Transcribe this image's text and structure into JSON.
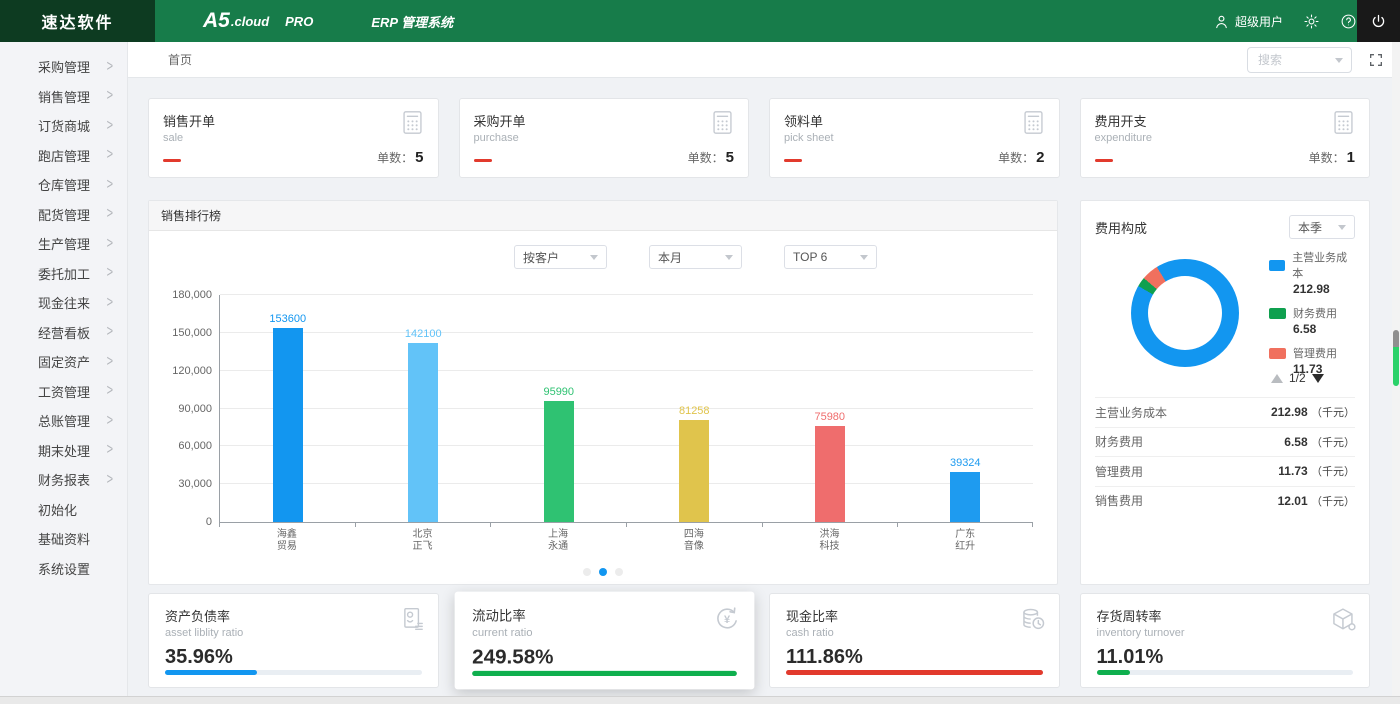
{
  "header": {
    "brand": "速达软件",
    "logo": {
      "main": "A5",
      "cloud": ".cloud",
      "pro": "PRO"
    },
    "system_name": "ERP 管理系统",
    "user_name": "超级用户"
  },
  "sidebar": {
    "items": [
      {
        "label": "采购管理",
        "expandable": true
      },
      {
        "label": "销售管理",
        "expandable": true
      },
      {
        "label": "订货商城",
        "expandable": true
      },
      {
        "label": "跑店管理",
        "expandable": true
      },
      {
        "label": "仓库管理",
        "expandable": true
      },
      {
        "label": "配货管理",
        "expandable": true
      },
      {
        "label": "生产管理",
        "expandable": true
      },
      {
        "label": "委托加工",
        "expandable": true
      },
      {
        "label": "现金往来",
        "expandable": true
      },
      {
        "label": "经营看板",
        "expandable": true
      },
      {
        "label": "固定资产",
        "expandable": true
      },
      {
        "label": "工资管理",
        "expandable": true
      },
      {
        "label": "总账管理",
        "expandable": true
      },
      {
        "label": "期末处理",
        "expandable": true
      },
      {
        "label": "财务报表",
        "expandable": true
      },
      {
        "label": "初始化",
        "expandable": false
      },
      {
        "label": "基础资料",
        "expandable": false
      },
      {
        "label": "系统设置",
        "expandable": false
      }
    ]
  },
  "toolbar": {
    "breadcrumb": "首页",
    "search_placeholder": "搜索"
  },
  "stat_cards": [
    {
      "title": "销售开单",
      "subtitle": "sale",
      "count_label": "单数：",
      "count": "5"
    },
    {
      "title": "采购开单",
      "subtitle": "purchase",
      "count_label": "单数：",
      "count": "5"
    },
    {
      "title": "领料单",
      "subtitle": "pick sheet",
      "count_label": "单数：",
      "count": "2"
    },
    {
      "title": "费用开支",
      "subtitle": "expenditure",
      "count_label": "单数：",
      "count": "1"
    }
  ],
  "sales_panel": {
    "title": "销售排行榜",
    "filters": [
      "按客户",
      "本月",
      "TOP 6"
    ],
    "dot_count": 3,
    "active_dot": 1
  },
  "expense_panel": {
    "title": "费用构成",
    "filter": "本季",
    "pager": "1/2",
    "legend": [
      {
        "label": "主营业务成本",
        "value": "212.98",
        "color": "#1296f0"
      },
      {
        "label": "财务费用",
        "value": "6.58",
        "color": "#0fa04f"
      },
      {
        "label": "管理费用",
        "value": "11.73",
        "color": "#f0705e"
      }
    ],
    "rows": [
      {
        "label": "主营业务成本",
        "value": "212.98",
        "unit": "（千元）"
      },
      {
        "label": "财务费用",
        "value": "6.58",
        "unit": "（千元）"
      },
      {
        "label": "管理费用",
        "value": "11.73",
        "unit": "（千元）"
      },
      {
        "label": "销售费用",
        "value": "12.01",
        "unit": "（千元）"
      }
    ]
  },
  "kpi_cards": [
    {
      "title": "资产负债率",
      "subtitle": "asset liblity ratio",
      "value": "35.96%",
      "bar_color": "#1296f0",
      "bar_pct": 36,
      "icon": "report-icon",
      "elevated": false
    },
    {
      "title": "流动比率",
      "subtitle": "current ratio",
      "value": "249.58%",
      "bar_color": "#0faf4e",
      "bar_pct": 100,
      "icon": "refresh-yuan-icon",
      "elevated": true
    },
    {
      "title": "现金比率",
      "subtitle": "cash ratio",
      "value": "111.86%",
      "bar_color": "#e23a2d",
      "bar_pct": 100,
      "icon": "coins-icon",
      "elevated": false
    },
    {
      "title": "存货周转率",
      "subtitle": "inventory turnover",
      "value": "11.01%",
      "bar_color": "#0faf4e",
      "bar_pct": 13,
      "icon": "cube-icon",
      "elevated": false
    }
  ],
  "chart_data": [
    {
      "type": "bar",
      "title": "销售排行榜",
      "categories": [
        "海鑫贸易",
        "北京正飞",
        "上海永通",
        "四海音像",
        "洪海科技",
        "广东红升"
      ],
      "values": [
        153600,
        142100,
        95990,
        81258,
        75980,
        39324
      ],
      "colors": [
        "#1296f0",
        "#62c3f8",
        "#2fc272",
        "#e0c44c",
        "#ef6d6d",
        "#1e9bf0"
      ],
      "ylim": [
        0,
        180000
      ],
      "ytick_labels": [
        "0",
        "30,000",
        "60,000",
        "90,000",
        "120,000",
        "150,000",
        "180,000"
      ],
      "grid": true,
      "value_labels": true,
      "legend_position": "none"
    },
    {
      "type": "pie",
      "title": "费用构成",
      "labels": [
        "主营业务成本",
        "财务费用",
        "管理费用"
      ],
      "values": [
        212.98,
        6.58,
        11.73
      ],
      "colors": [
        "#1296f0",
        "#0fa04f",
        "#f0705e"
      ],
      "donut": true,
      "period": "本季"
    }
  ]
}
